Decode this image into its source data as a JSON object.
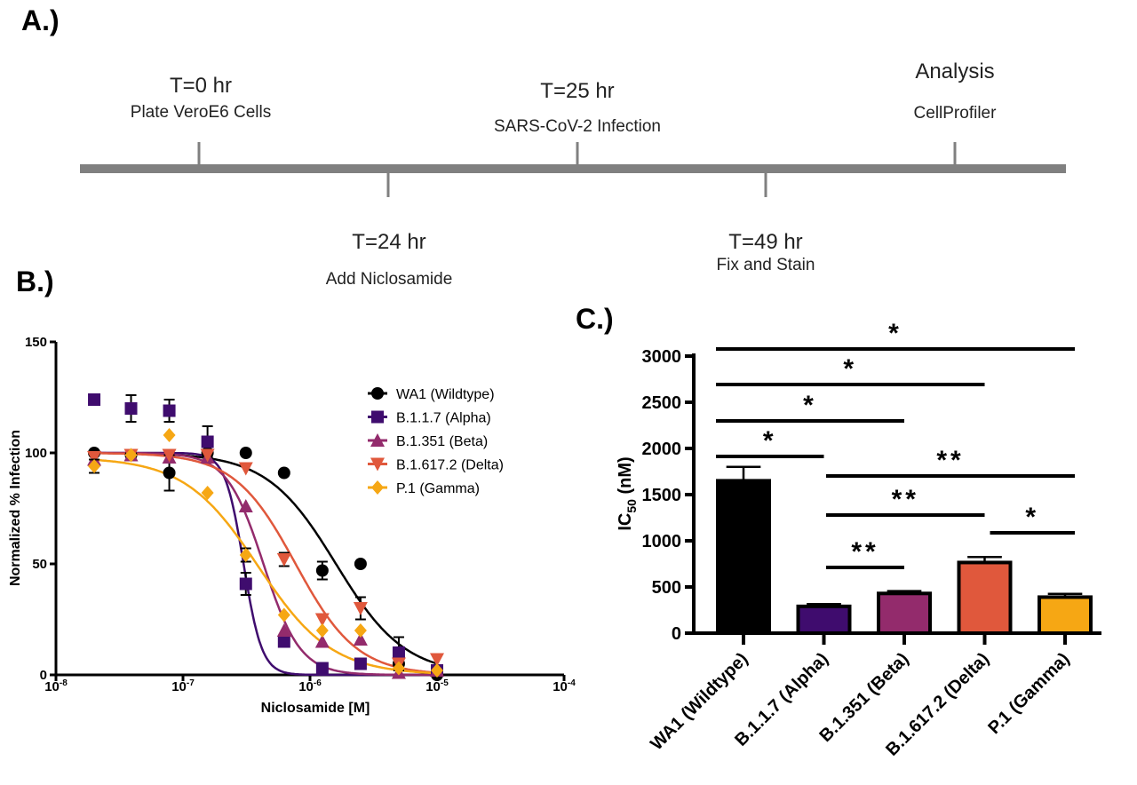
{
  "panels": {
    "a": "A.)",
    "b": "B.)",
    "c": "C.)"
  },
  "timeline": {
    "events": [
      {
        "title": "T=0 hr",
        "subtitle": "Plate VeroE6 Cells",
        "side": "above"
      },
      {
        "title": "T=24 hr",
        "subtitle": "Add Niclosamide",
        "side": "below"
      },
      {
        "title": "T=25 hr",
        "subtitle": "SARS-CoV-2 Infection",
        "side": "above"
      },
      {
        "title": "T=49 hr",
        "subtitle": "Fix and Stain",
        "side": "below"
      },
      {
        "title": "Analysis",
        "subtitle": "CellProfiler",
        "side": "above"
      }
    ],
    "color": "#808080"
  },
  "chart_data": [
    {
      "type": "scatter",
      "xlabel": "Niclosamide [M]",
      "ylabel": "Normalized % Infection",
      "xscale": "log",
      "xlim": [
        1e-08,
        0.0001
      ],
      "ylim": [
        0,
        150
      ],
      "xticks": [
        "10-8",
        "10-7",
        "10-6",
        "10-5",
        "10-4"
      ],
      "yticks": [
        "0",
        "50",
        "100",
        "150"
      ],
      "legend_position": "top-right",
      "x": [
        2e-08,
        3.9e-08,
        7.8e-08,
        1.56e-07,
        3.125e-07,
        6.25e-07,
        1.25e-06,
        2.5e-06,
        5e-06,
        1e-05
      ],
      "series": [
        {
          "name": "WA1 (Wildtype)",
          "marker": "circle",
          "color": "#000000",
          "values": [
            100,
            99,
            91,
            100,
            100,
            91,
            47,
            50,
            5,
            0
          ],
          "error": [
            0,
            2,
            8,
            0,
            0,
            0,
            4,
            0,
            3,
            0
          ],
          "fit": {
            "top": 100,
            "bottom": 0,
            "ic50": 1.6e-06,
            "hill": 1.6
          }
        },
        {
          "name": "B.1.1.7 (Alpha)",
          "marker": "square",
          "color": "#3f0c6e",
          "values": [
            124,
            120,
            119,
            105,
            41,
            15,
            3,
            5,
            10,
            2
          ],
          "error": [
            0,
            6,
            5,
            7,
            5,
            0,
            0,
            0,
            7,
            0
          ],
          "fit": {
            "top": 100,
            "bottom": 0,
            "ic50": 3e-07,
            "hill": 6
          }
        },
        {
          "name": "B.1.351 (Beta)",
          "marker": "triangle-up",
          "color": "#932b6c",
          "values": [
            97,
            99,
            98,
            98,
            76,
            20,
            15,
            16,
            1,
            2
          ],
          "error": [
            0,
            0,
            0,
            0,
            0,
            0,
            0,
            0,
            0,
            0
          ],
          "fit": {
            "top": 100,
            "bottom": 0,
            "ic50": 4.3e-07,
            "hill": 3
          }
        },
        {
          "name": "B.1.617.2 (Delta)",
          "marker": "triangle-down",
          "color": "#e0583c",
          "values": [
            98,
            99,
            99,
            99,
            93,
            52,
            25,
            30,
            5,
            7
          ],
          "error": [
            0,
            0,
            0,
            0,
            0,
            3,
            0,
            5,
            0,
            0
          ],
          "fit": {
            "top": 100,
            "bottom": 0,
            "ic50": 7.7e-07,
            "hill": 1.8
          }
        },
        {
          "name": "P.1 (Gamma)",
          "marker": "diamond",
          "color": "#f6a714",
          "values": [
            94,
            99,
            108,
            82,
            54,
            27,
            20,
            20,
            3,
            2
          ],
          "error": [
            3,
            0,
            0,
            0,
            3,
            0,
            0,
            0,
            0,
            0
          ],
          "fit": {
            "top": 98,
            "bottom": 0,
            "ic50": 3.9e-07,
            "hill": 1.5
          }
        }
      ]
    },
    {
      "type": "bar",
      "ylabel": "IC",
      "ylabel_sub": "50",
      "ylabel_unit": " (nM)",
      "ylim": [
        0,
        3000
      ],
      "yticks": [
        "0",
        "500",
        "1000",
        "1500",
        "2000",
        "2500",
        "3000"
      ],
      "categories": [
        "WA1 (Wildtype)",
        "B.1.1.7 (Alpha)",
        "B.1.351 (Beta)",
        "B.1.617.2 (Delta)",
        "P.1 (Gamma)"
      ],
      "values": [
        1650,
        290,
        430,
        765,
        390
      ],
      "error": [
        150,
        25,
        25,
        60,
        35
      ],
      "colors": [
        "#000000",
        "#3f0c6e",
        "#932b6c",
        "#e0583c",
        "#f6a714"
      ],
      "significance": [
        {
          "from": 0,
          "to": 4,
          "label": "*"
        },
        {
          "from": 0,
          "to": 3,
          "label": "*"
        },
        {
          "from": 0,
          "to": 2,
          "label": "*"
        },
        {
          "from": 0,
          "to": 1,
          "label": "*"
        },
        {
          "from": 1,
          "to": 4,
          "label": "**"
        },
        {
          "from": 1,
          "to": 3,
          "label": "**"
        },
        {
          "from": 3,
          "to": 4,
          "label": "*"
        },
        {
          "from": 1,
          "to": 2,
          "label": "**"
        }
      ]
    }
  ]
}
